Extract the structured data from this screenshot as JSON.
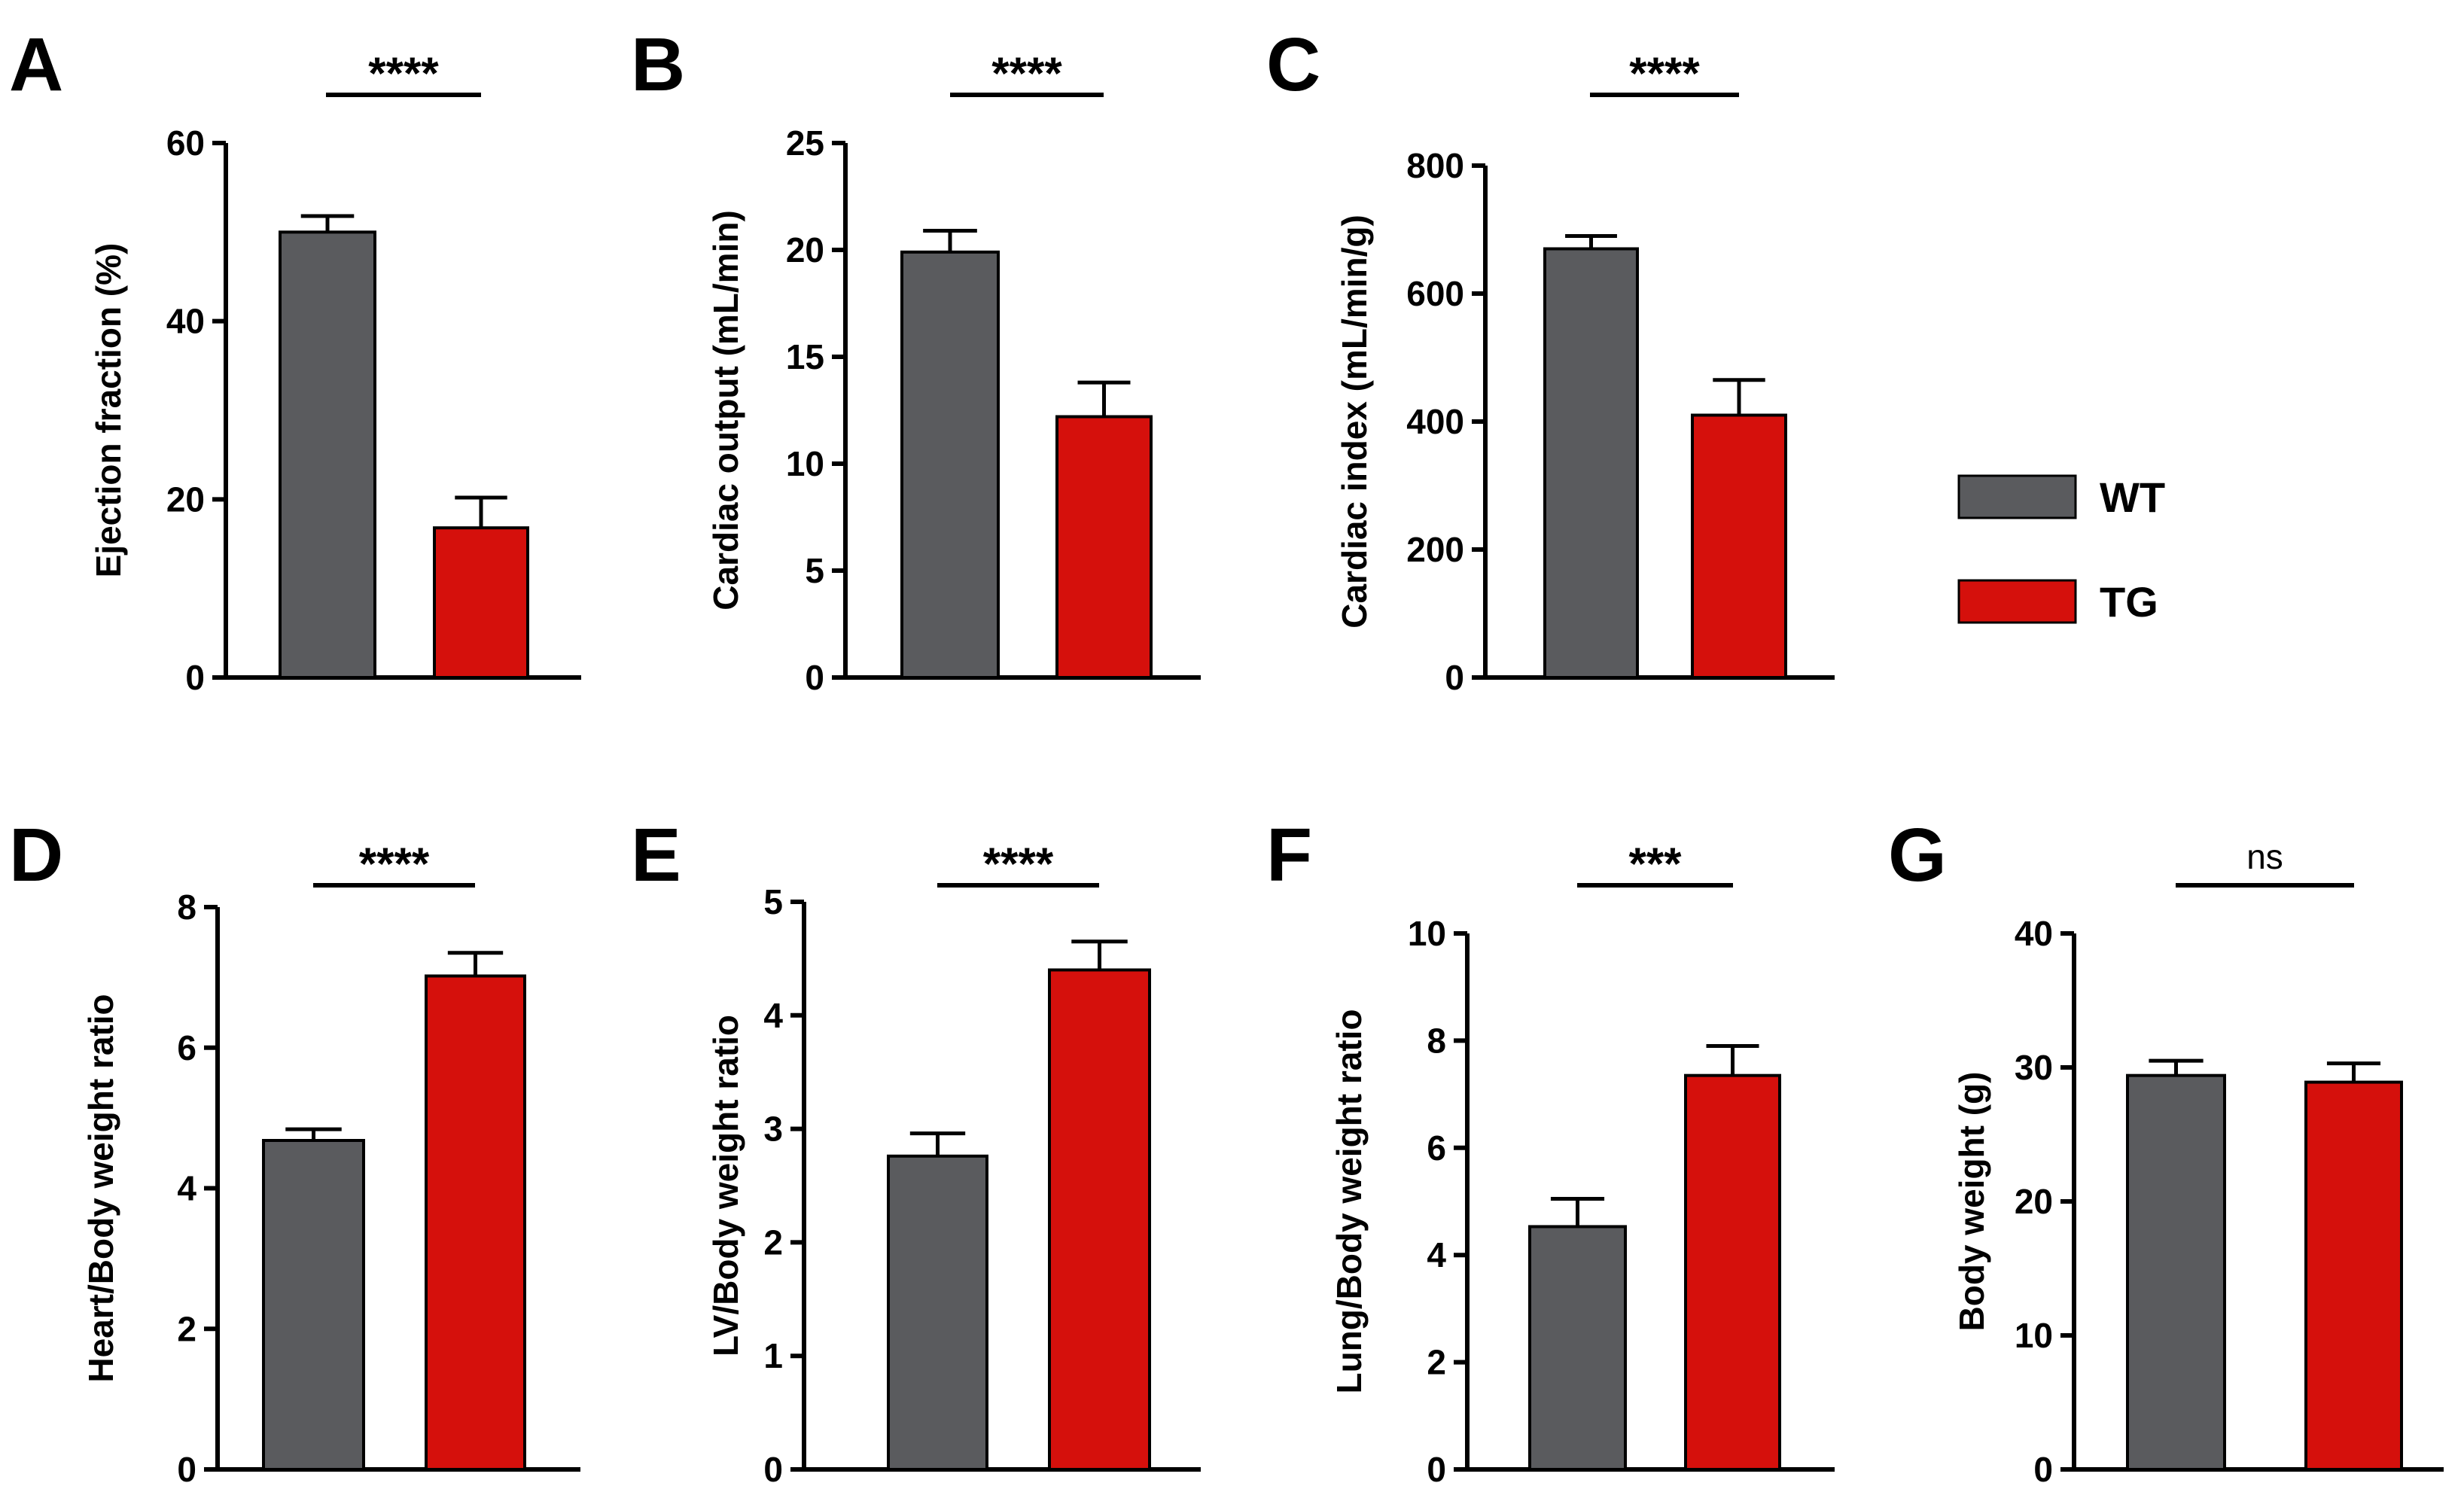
{
  "legend": {
    "items": [
      {
        "label": "WT",
        "color": "#5a5b5e"
      },
      {
        "label": "TG",
        "color": "#d5100c"
      }
    ]
  },
  "colors": {
    "WT": "#5a5b5e",
    "TG": "#d5100c",
    "axis": "#000000"
  },
  "chart_data": [
    {
      "type": "bar",
      "panel": "A",
      "categories": [
        "WT",
        "TG"
      ],
      "values": [
        50,
        16.8
      ],
      "errors": [
        1.8,
        3.4
      ],
      "ylabel": "Ejection fraction (%)",
      "ylim": [
        0,
        60
      ],
      "yticks": [
        0,
        20,
        40,
        60
      ],
      "significance": "****"
    },
    {
      "type": "bar",
      "panel": "B",
      "categories": [
        "WT",
        "TG"
      ],
      "values": [
        19.9,
        12.2
      ],
      "errors": [
        1.0,
        1.6
      ],
      "ylabel": "Cardiac output (mL/min)",
      "ylim": [
        0,
        25
      ],
      "yticks": [
        0,
        5,
        10,
        15,
        20,
        25
      ],
      "significance": "****"
    },
    {
      "type": "bar",
      "panel": "C",
      "categories": [
        "WT",
        "TG"
      ],
      "values": [
        670,
        410
      ],
      "errors": [
        20,
        55
      ],
      "ylabel": "Cardiac index (mL/min/g)",
      "ylim": [
        0,
        800
      ],
      "yticks": [
        0,
        200,
        400,
        600,
        800
      ],
      "significance": "****"
    },
    {
      "type": "bar",
      "panel": "D",
      "categories": [
        "WT",
        "TG"
      ],
      "values": [
        4.68,
        7.02
      ],
      "errors": [
        0.16,
        0.33
      ],
      "ylabel": "Heart/Body weight ratio",
      "ylim": [
        0,
        8
      ],
      "yticks": [
        0,
        2,
        4,
        6,
        8
      ],
      "significance": "****"
    },
    {
      "type": "bar",
      "panel": "E",
      "categories": [
        "WT",
        "TG"
      ],
      "values": [
        2.76,
        4.4
      ],
      "errors": [
        0.2,
        0.25
      ],
      "ylabel": "LV/Body weight ratio",
      "ylim": [
        0,
        5
      ],
      "yticks": [
        0,
        1,
        2,
        3,
        4,
        5
      ],
      "significance": "****"
    },
    {
      "type": "bar",
      "panel": "F",
      "categories": [
        "WT",
        "TG"
      ],
      "values": [
        4.53,
        7.35
      ],
      "errors": [
        0.52,
        0.55
      ],
      "ylabel": "Lung/Body weight ratio",
      "ylim": [
        0,
        10
      ],
      "yticks": [
        0,
        2,
        4,
        6,
        8,
        10
      ],
      "significance": "***"
    },
    {
      "type": "bar",
      "panel": "G",
      "categories": [
        "WT",
        "TG"
      ],
      "values": [
        29.4,
        28.9
      ],
      "errors": [
        1.1,
        1.4
      ],
      "ylabel": "Body weight (g)",
      "ylim": [
        0,
        40
      ],
      "yticks": [
        0,
        10,
        20,
        30,
        40
      ],
      "significance": "ns"
    }
  ]
}
